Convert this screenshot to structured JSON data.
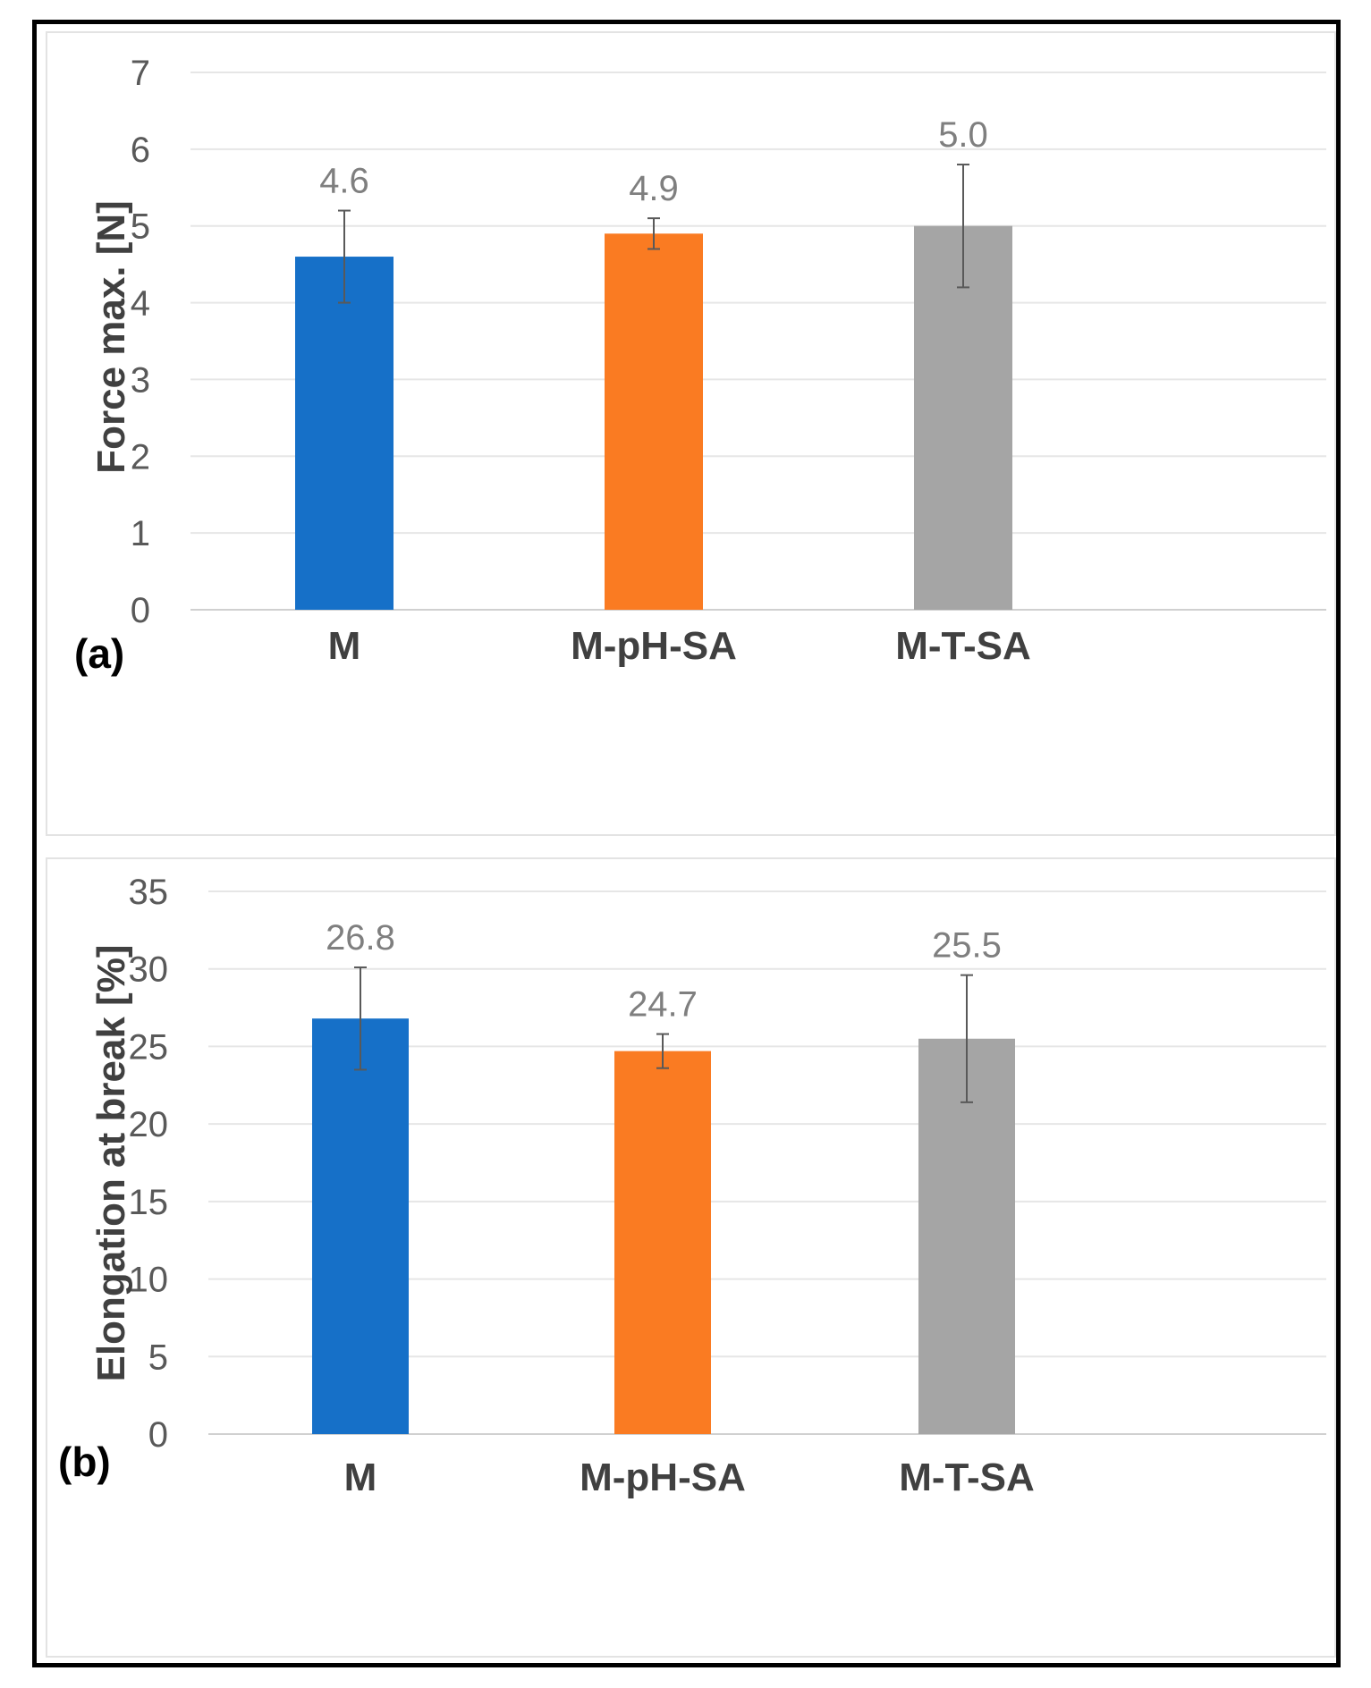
{
  "chart_data": [
    {
      "type": "bar",
      "panel_label": "(a)",
      "ylabel": "Force max. [N]",
      "ylim": [
        0,
        7
      ],
      "yticks": [
        0,
        1,
        2,
        3,
        4,
        5,
        6,
        7
      ],
      "categories": [
        "M",
        "M-pH-SA",
        "M-T-SA"
      ],
      "values": [
        4.6,
        4.9,
        5.0
      ],
      "value_labels": [
        "4.6",
        "4.9",
        "5.0"
      ],
      "errors": [
        0.6,
        0.2,
        0.8
      ],
      "colors": [
        "#1670c8",
        "#fa7b22",
        "#a5a5a5"
      ],
      "grid": true
    },
    {
      "type": "bar",
      "panel_label": "(b)",
      "ylabel": "Elongation at break [%]",
      "ylim": [
        0,
        35
      ],
      "yticks": [
        0,
        5,
        10,
        15,
        20,
        25,
        30,
        35
      ],
      "categories": [
        "M",
        "M-pH-SA",
        "M-T-SA"
      ],
      "values": [
        26.8,
        24.7,
        25.5
      ],
      "value_labels": [
        "26.8",
        "24.7",
        "25.5"
      ],
      "errors": [
        3.3,
        1.1,
        4.1
      ],
      "colors": [
        "#1670c8",
        "#fa7b22",
        "#a5a5a5"
      ],
      "grid": true
    }
  ]
}
